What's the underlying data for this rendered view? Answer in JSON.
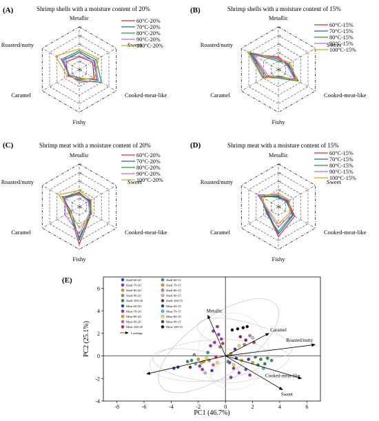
{
  "axes_labels": [
    "Metallic",
    "Sweet",
    "Cooked-meat-like",
    "Fishy",
    "Caramel",
    "Roasted/nutty"
  ],
  "ring_labels": [
    "0",
    "1",
    "2",
    "3",
    "4",
    "5"
  ],
  "colors": {
    "red": "#e8262b",
    "blue": "#1f5fd9",
    "green": "#1c9c3c",
    "violet": "#b06ef0",
    "orange": "#e0a21a"
  },
  "chart_data": [
    {
      "type": "radar",
      "panel": "(A)",
      "title": "Shrimp shells with a moisture content of 20%",
      "axes": [
        "Metallic",
        "Sweet",
        "Cooked-meat-like",
        "Fishy",
        "Caramel",
        "Roasted/nutty"
      ],
      "rmax": 5,
      "series": [
        {
          "name": "60°C-20%",
          "color": "#e8262b",
          "values": [
            1.5,
            1.8,
            2.0,
            1.2,
            1.5,
            1.8
          ]
        },
        {
          "name": "70°C-20%",
          "color": "#1f5fd9",
          "values": [
            2.0,
            2.0,
            2.4,
            1.0,
            1.3,
            2.2
          ]
        },
        {
          "name": "80°C-20%",
          "color": "#1c9c3c",
          "values": [
            2.2,
            2.3,
            3.0,
            1.3,
            1.4,
            2.4
          ]
        },
        {
          "name": "90°C-20%",
          "color": "#b06ef0",
          "values": [
            1.6,
            2.1,
            2.6,
            1.5,
            1.3,
            2.5
          ]
        },
        {
          "name": "100°C-20%",
          "color": "#e0a21a",
          "values": [
            2.4,
            2.6,
            2.1,
            1.1,
            1.6,
            3.2
          ]
        }
      ]
    },
    {
      "type": "radar",
      "panel": "(B)",
      "title": "Shrimp shells with a moisture content of 15%",
      "axes": [
        "Metallic",
        "Sweet",
        "Cooked-meat-like",
        "Fishy",
        "Caramel",
        "Roasted/nutty"
      ],
      "rmax": 5,
      "series": [
        {
          "name": "60°C-15%",
          "color": "#e8262b",
          "values": [
            1.5,
            1.3,
            2.3,
            0.8,
            1.6,
            3.6
          ]
        },
        {
          "name": "70°C-15%",
          "color": "#1f5fd9",
          "values": [
            1.2,
            1.2,
            2.6,
            0.8,
            2.0,
            3.9
          ]
        },
        {
          "name": "80°C-15%",
          "color": "#1c9c3c",
          "values": [
            1.0,
            1.4,
            2.7,
            1.0,
            1.8,
            3.7
          ]
        },
        {
          "name": "90°C-15%",
          "color": "#b06ef0",
          "values": [
            1.4,
            1.1,
            2.2,
            0.9,
            1.4,
            3.4
          ]
        },
        {
          "name": "100°C-15%",
          "color": "#e0a21a",
          "values": [
            1.3,
            1.6,
            2.5,
            0.7,
            2.1,
            4.2
          ]
        }
      ]
    },
    {
      "type": "radar",
      "panel": "(C)",
      "title": "Shrimp meat with a moisture content of 20%",
      "axes": [
        "Metallic",
        "Sweet",
        "Cooked-meat-like",
        "Fishy",
        "Caramel",
        "Roasted/nutty"
      ],
      "rmax": 5,
      "series": [
        {
          "name": "60°C-20%",
          "color": "#e8262b",
          "values": [
            1.6,
            1.4,
            1.6,
            4.4,
            1.3,
            2.0
          ]
        },
        {
          "name": "70°C-20%",
          "color": "#1f5fd9",
          "values": [
            1.4,
            1.5,
            1.5,
            3.9,
            1.1,
            2.3
          ]
        },
        {
          "name": "80°C-20%",
          "color": "#1c9c3c",
          "values": [
            1.7,
            1.3,
            1.6,
            3.6,
            1.4,
            2.2
          ]
        },
        {
          "name": "90°C-20%",
          "color": "#b06ef0",
          "values": [
            1.5,
            1.2,
            1.4,
            3.2,
            1.9,
            1.9
          ]
        },
        {
          "name": "100°C-20%",
          "color": "#e0a21a",
          "values": [
            1.9,
            1.6,
            1.7,
            2.5,
            1.2,
            2.8
          ]
        }
      ]
    },
    {
      "type": "radar",
      "panel": "(D)",
      "title": "Shrimp meat with a moisture content of 15%",
      "axes": [
        "Metallic",
        "Sweet",
        "Cooked-meat-like",
        "Fishy",
        "Caramel",
        "Roasted/nutty"
      ],
      "rmax": 5,
      "series": [
        {
          "name": "60°C-15%",
          "color": "#e8262b",
          "values": [
            1.2,
            1.3,
            2.2,
            3.5,
            1.5,
            2.3
          ]
        },
        {
          "name": "70°C-15%",
          "color": "#1f5fd9",
          "values": [
            1.1,
            1.2,
            2.0,
            3.2,
            1.4,
            2.6
          ]
        },
        {
          "name": "80°C-15%",
          "color": "#1c9c3c",
          "values": [
            1.3,
            1.1,
            1.9,
            2.9,
            1.6,
            2.4
          ]
        },
        {
          "name": "90°C-15%",
          "color": "#b06ef0",
          "values": [
            1.4,
            1.4,
            1.7,
            2.4,
            1.3,
            2.8
          ]
        },
        {
          "name": "100°C-15%",
          "color": "#e0a21a",
          "values": [
            1.6,
            1.5,
            1.5,
            2.0,
            1.2,
            2.5
          ]
        }
      ]
    },
    {
      "type": "scatter",
      "panel": "(E)",
      "xlabel": "PC1 (46.7%)",
      "ylabel": "PC2 (25.1%)",
      "xlim": [
        -9,
        7
      ],
      "ylim": [
        -4,
        7
      ],
      "xticks": [
        -8,
        -6,
        -4,
        -2,
        0,
        2,
        4,
        6
      ],
      "yticks": [
        -4,
        -2,
        0,
        2,
        4,
        6
      ],
      "legend": [
        {
          "name": "Shell-60-20",
          "color": "#2a3fbf"
        },
        {
          "name": "Shell-70-20",
          "color": "#9a2fd6"
        },
        {
          "name": "Shell-80-20",
          "color": "#d0a020"
        },
        {
          "name": "Shell-90-20",
          "color": "#8a8a8a"
        },
        {
          "name": "Shell-100-20",
          "color": "#1c9c3c"
        },
        {
          "name": "Meat-60-20",
          "color": "#2a3fbf"
        },
        {
          "name": "Meat-70-20",
          "color": "#9a2fd6"
        },
        {
          "name": "Meat-80-20",
          "color": "#e0a21a"
        },
        {
          "name": "Meat-90-20",
          "color": "#e05aa0"
        },
        {
          "name": "Meat-100-20",
          "color": "#e8262b"
        },
        {
          "name": "Shell-60-15",
          "color": "#2a9a8a"
        },
        {
          "name": "Shell-70-15",
          "color": "#e0a21a"
        },
        {
          "name": "Shell-80-15",
          "color": "#f06a80"
        },
        {
          "name": "Shell-90-15",
          "color": "#bfbfbf"
        },
        {
          "name": "Shell-100-15",
          "color": "#a01830"
        },
        {
          "name": "Meat-60-15",
          "color": "#2a3fbf"
        },
        {
          "name": "Meat-70-15",
          "color": "#36c8e8"
        },
        {
          "name": "Meat-80-15",
          "color": "#f5e04a"
        },
        {
          "name": "Meat-90-15",
          "color": "#4a3a8a"
        },
        {
          "name": "Meat-100-15",
          "color": "#111111"
        }
      ],
      "loadings_label": "Loadings",
      "loadings": [
        {
          "name": "Metallic",
          "x": -1.3,
          "y": 3.6
        },
        {
          "name": "Caramel",
          "x": 3.2,
          "y": 2.0
        },
        {
          "name": "Roasted/nutty",
          "x": 6.6,
          "y": 1.0
        },
        {
          "name": "Cooked-meat-like",
          "x": 5.6,
          "y": -2.0
        },
        {
          "name": "Sweet",
          "x": 4.2,
          "y": -3.0
        },
        {
          "name": "",
          "x": -5.8,
          "y": -1.6
        }
      ],
      "points": [
        {
          "x": -3.8,
          "y": -1.1,
          "g": 0
        },
        {
          "x": -3.5,
          "y": -1.0,
          "g": 5
        },
        {
          "x": -2.0,
          "y": -0.3,
          "g": 2
        },
        {
          "x": -1.8,
          "y": -0.6,
          "g": 7
        },
        {
          "x": -1.6,
          "y": -0.5,
          "g": 11
        },
        {
          "x": -1.4,
          "y": -0.2,
          "g": 17
        },
        {
          "x": -2.2,
          "y": -0.7,
          "g": 16
        },
        {
          "x": -2.5,
          "y": -0.4,
          "g": 10
        },
        {
          "x": -1.9,
          "y": -0.9,
          "g": 6
        },
        {
          "x": -1.7,
          "y": -1.2,
          "g": 1
        },
        {
          "x": -1.2,
          "y": -0.4,
          "g": 12
        },
        {
          "x": -0.9,
          "y": -0.8,
          "g": 8
        },
        {
          "x": -2.8,
          "y": -0.5,
          "g": 4
        },
        {
          "x": -2.6,
          "y": -1.0,
          "g": 14
        },
        {
          "x": -1.0,
          "y": -1.3,
          "g": 15
        },
        {
          "x": -0.6,
          "y": -0.6,
          "g": 17
        },
        {
          "x": -1.3,
          "y": 0.3,
          "g": 10
        },
        {
          "x": -2.3,
          "y": 0.1,
          "g": 3
        },
        {
          "x": -0.7,
          "y": -0.1,
          "g": 9
        },
        {
          "x": -1.5,
          "y": -1.5,
          "g": 13
        },
        {
          "x": -0.6,
          "y": 2.6,
          "g": 1
        },
        {
          "x": -0.5,
          "y": 1.9,
          "g": 1
        },
        {
          "x": -0.3,
          "y": 1.5,
          "g": 6
        },
        {
          "x": -0.8,
          "y": 1.2,
          "g": 1
        },
        {
          "x": -0.4,
          "y": 0.8,
          "g": 3
        },
        {
          "x": -0.2,
          "y": 1.1,
          "g": 9
        },
        {
          "x": -1.1,
          "y": 0.9,
          "g": 6
        },
        {
          "x": -0.9,
          "y": 2.2,
          "g": 1
        },
        {
          "x": 0.5,
          "y": 2.3,
          "g": 19
        },
        {
          "x": 0.9,
          "y": 2.4,
          "g": 19
        },
        {
          "x": 1.3,
          "y": 2.5,
          "g": 19
        },
        {
          "x": 1.6,
          "y": 2.6,
          "g": 19
        },
        {
          "x": 1.1,
          "y": 1.7,
          "g": 14
        },
        {
          "x": 1.5,
          "y": 1.4,
          "g": 14
        },
        {
          "x": 1.8,
          "y": 1.8,
          "g": 12
        },
        {
          "x": 2.1,
          "y": 1.2,
          "g": 9
        },
        {
          "x": 1.4,
          "y": 1.0,
          "g": 8
        },
        {
          "x": 2.0,
          "y": 1.6,
          "g": 13
        },
        {
          "x": 0.7,
          "y": 0.6,
          "g": 18
        },
        {
          "x": 1.0,
          "y": 0.9,
          "g": 17
        },
        {
          "x": 0.3,
          "y": -0.6,
          "g": 1
        },
        {
          "x": 0.6,
          "y": -1.1,
          "g": 1
        },
        {
          "x": 1.0,
          "y": -1.5,
          "g": 1
        },
        {
          "x": 1.5,
          "y": -1.2,
          "g": 6
        },
        {
          "x": 1.8,
          "y": -1.7,
          "g": 6
        },
        {
          "x": 0.4,
          "y": -1.9,
          "g": 1
        },
        {
          "x": 2.6,
          "y": -0.3,
          "g": 4
        },
        {
          "x": 2.9,
          "y": -0.7,
          "g": 4
        },
        {
          "x": 3.1,
          "y": -0.2,
          "g": 4
        },
        {
          "x": 2.4,
          "y": -0.8,
          "g": 4
        },
        {
          "x": 2.2,
          "y": -0.1,
          "g": 4
        },
        {
          "x": 0.8,
          "y": -0.2,
          "g": 0
        },
        {
          "x": 0.2,
          "y": -0.5,
          "g": 10
        },
        {
          "x": 0.4,
          "y": 0.2,
          "g": 2
        },
        {
          "x": 1.2,
          "y": -0.4,
          "g": 7
        },
        {
          "x": 2.0,
          "y": -0.6,
          "g": 11
        },
        {
          "x": 2.8,
          "y": -1.1,
          "g": 16
        },
        {
          "x": 0.6,
          "y": -0.8,
          "g": 17
        },
        {
          "x": 1.7,
          "y": -0.3,
          "g": 15
        },
        {
          "x": 3.4,
          "y": -0.4,
          "g": 10
        }
      ]
    }
  ]
}
